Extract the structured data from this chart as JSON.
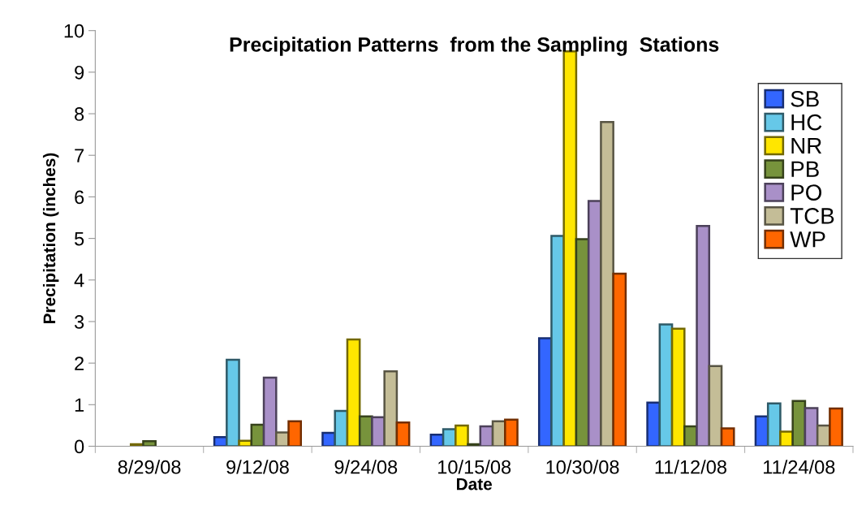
{
  "chart_data": {
    "type": "bar",
    "title": "Precipitation Patterns  from the Sampling  Stations",
    "xlabel": "Date",
    "ylabel": "Precipitation (inches)",
    "categories": [
      "8/29/08",
      "9/12/08",
      "9/24/08",
      "10/15/08",
      "10/30/08",
      "11/12/08",
      "11/24/08"
    ],
    "series": [
      {
        "name": "SB",
        "color": "#3366ff",
        "values": [
          null,
          0.22,
          0.32,
          0.28,
          2.6,
          1.05,
          0.72
        ]
      },
      {
        "name": "HC",
        "color": "#66c8e8",
        "values": [
          null,
          2.08,
          0.85,
          0.41,
          5.06,
          2.93,
          1.03
        ]
      },
      {
        "name": "NR",
        "color": "#ffe600",
        "values": [
          0.05,
          0.13,
          2.57,
          0.5,
          9.5,
          2.83,
          0.35
        ]
      },
      {
        "name": "PB",
        "color": "#77933c",
        "values": [
          0.12,
          0.52,
          0.72,
          0.05,
          4.98,
          0.48,
          1.09
        ]
      },
      {
        "name": "PO",
        "color": "#a990c8",
        "values": [
          null,
          1.65,
          0.7,
          0.48,
          5.9,
          5.3,
          0.92
        ]
      },
      {
        "name": "TCB",
        "color": "#c4bd97",
        "values": [
          null,
          0.33,
          1.8,
          0.6,
          7.8,
          1.93,
          0.5
        ]
      },
      {
        "name": "WP",
        "color": "#ff6600",
        "values": [
          null,
          0.6,
          0.57,
          0.64,
          4.15,
          0.43,
          0.91
        ]
      }
    ],
    "ylim": [
      0,
      10
    ],
    "yticks": [
      0,
      1,
      2,
      3,
      4,
      5,
      6,
      7,
      8,
      9,
      10
    ],
    "grid": false,
    "legend": "top right"
  }
}
